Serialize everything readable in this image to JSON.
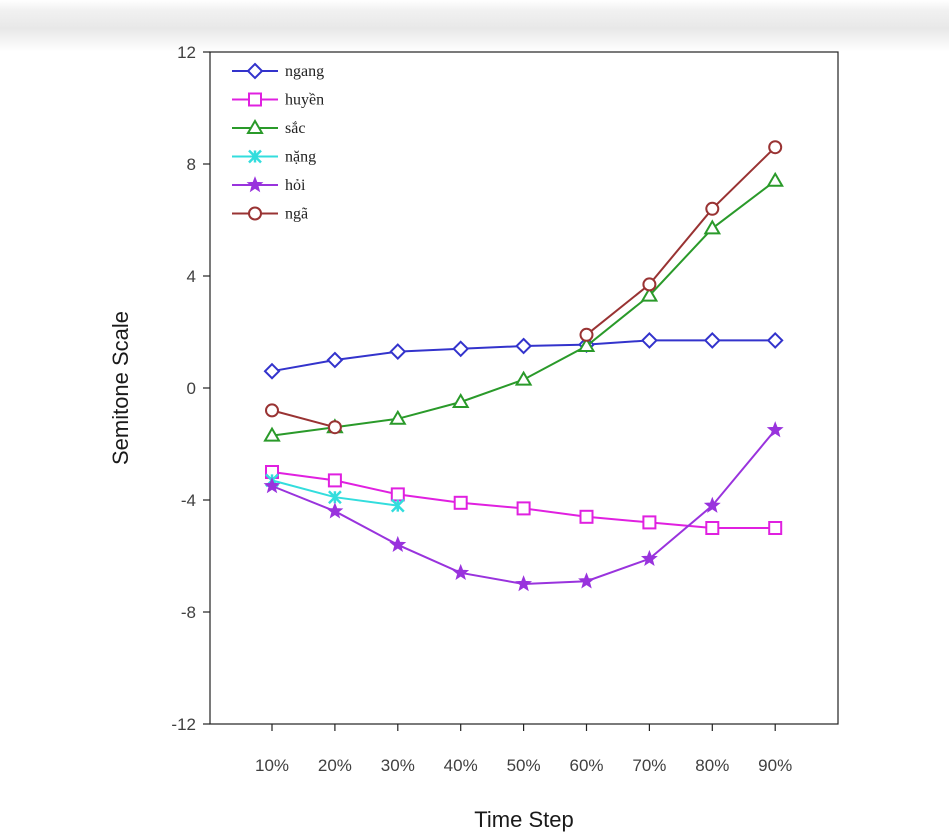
{
  "chart_data": {
    "type": "line",
    "xlabel": "Time Step",
    "ylabel": "Semitone Scale",
    "categories": [
      "10%",
      "20%",
      "30%",
      "40%",
      "50%",
      "60%",
      "70%",
      "80%",
      "90%"
    ],
    "yticks": [
      "12",
      "8",
      "4",
      "0",
      "-4",
      "-8",
      "-12"
    ],
    "ylim": [
      -12,
      12
    ],
    "grid": false,
    "legend_position": "top-left",
    "series": [
      {
        "name": "ngang",
        "color": "#3333cc",
        "marker": "diamond",
        "values": [
          0.6,
          1.0,
          1.3,
          1.4,
          1.5,
          1.55,
          1.7,
          1.7,
          1.7
        ]
      },
      {
        "name": "huyền",
        "color": "#e020e0",
        "marker": "square",
        "values": [
          -3.0,
          -3.3,
          -3.8,
          -4.1,
          -4.3,
          -4.6,
          -4.8,
          -5.0,
          -5.0
        ]
      },
      {
        "name": "sắc",
        "color": "#2a9a2a",
        "marker": "triangle",
        "values": [
          -1.7,
          -1.4,
          -1.1,
          -0.5,
          0.3,
          1.5,
          3.3,
          5.7,
          7.4
        ]
      },
      {
        "name": "nặng",
        "color": "#33dddd",
        "marker": "x",
        "values": [
          -3.3,
          -3.9,
          -4.2,
          null,
          null,
          null,
          null,
          null,
          null
        ]
      },
      {
        "name": "hỏi",
        "color": "#9933dd",
        "marker": "star",
        "values": [
          -3.5,
          -4.4,
          -5.6,
          -6.6,
          -7.0,
          -6.9,
          -6.1,
          -4.2,
          -1.5
        ]
      },
      {
        "name": "ngã",
        "color": "#993333",
        "marker": "circle",
        "values": [
          -0.8,
          -1.4,
          null,
          null,
          null,
          1.9,
          3.7,
          6.4,
          8.6
        ]
      }
    ]
  }
}
